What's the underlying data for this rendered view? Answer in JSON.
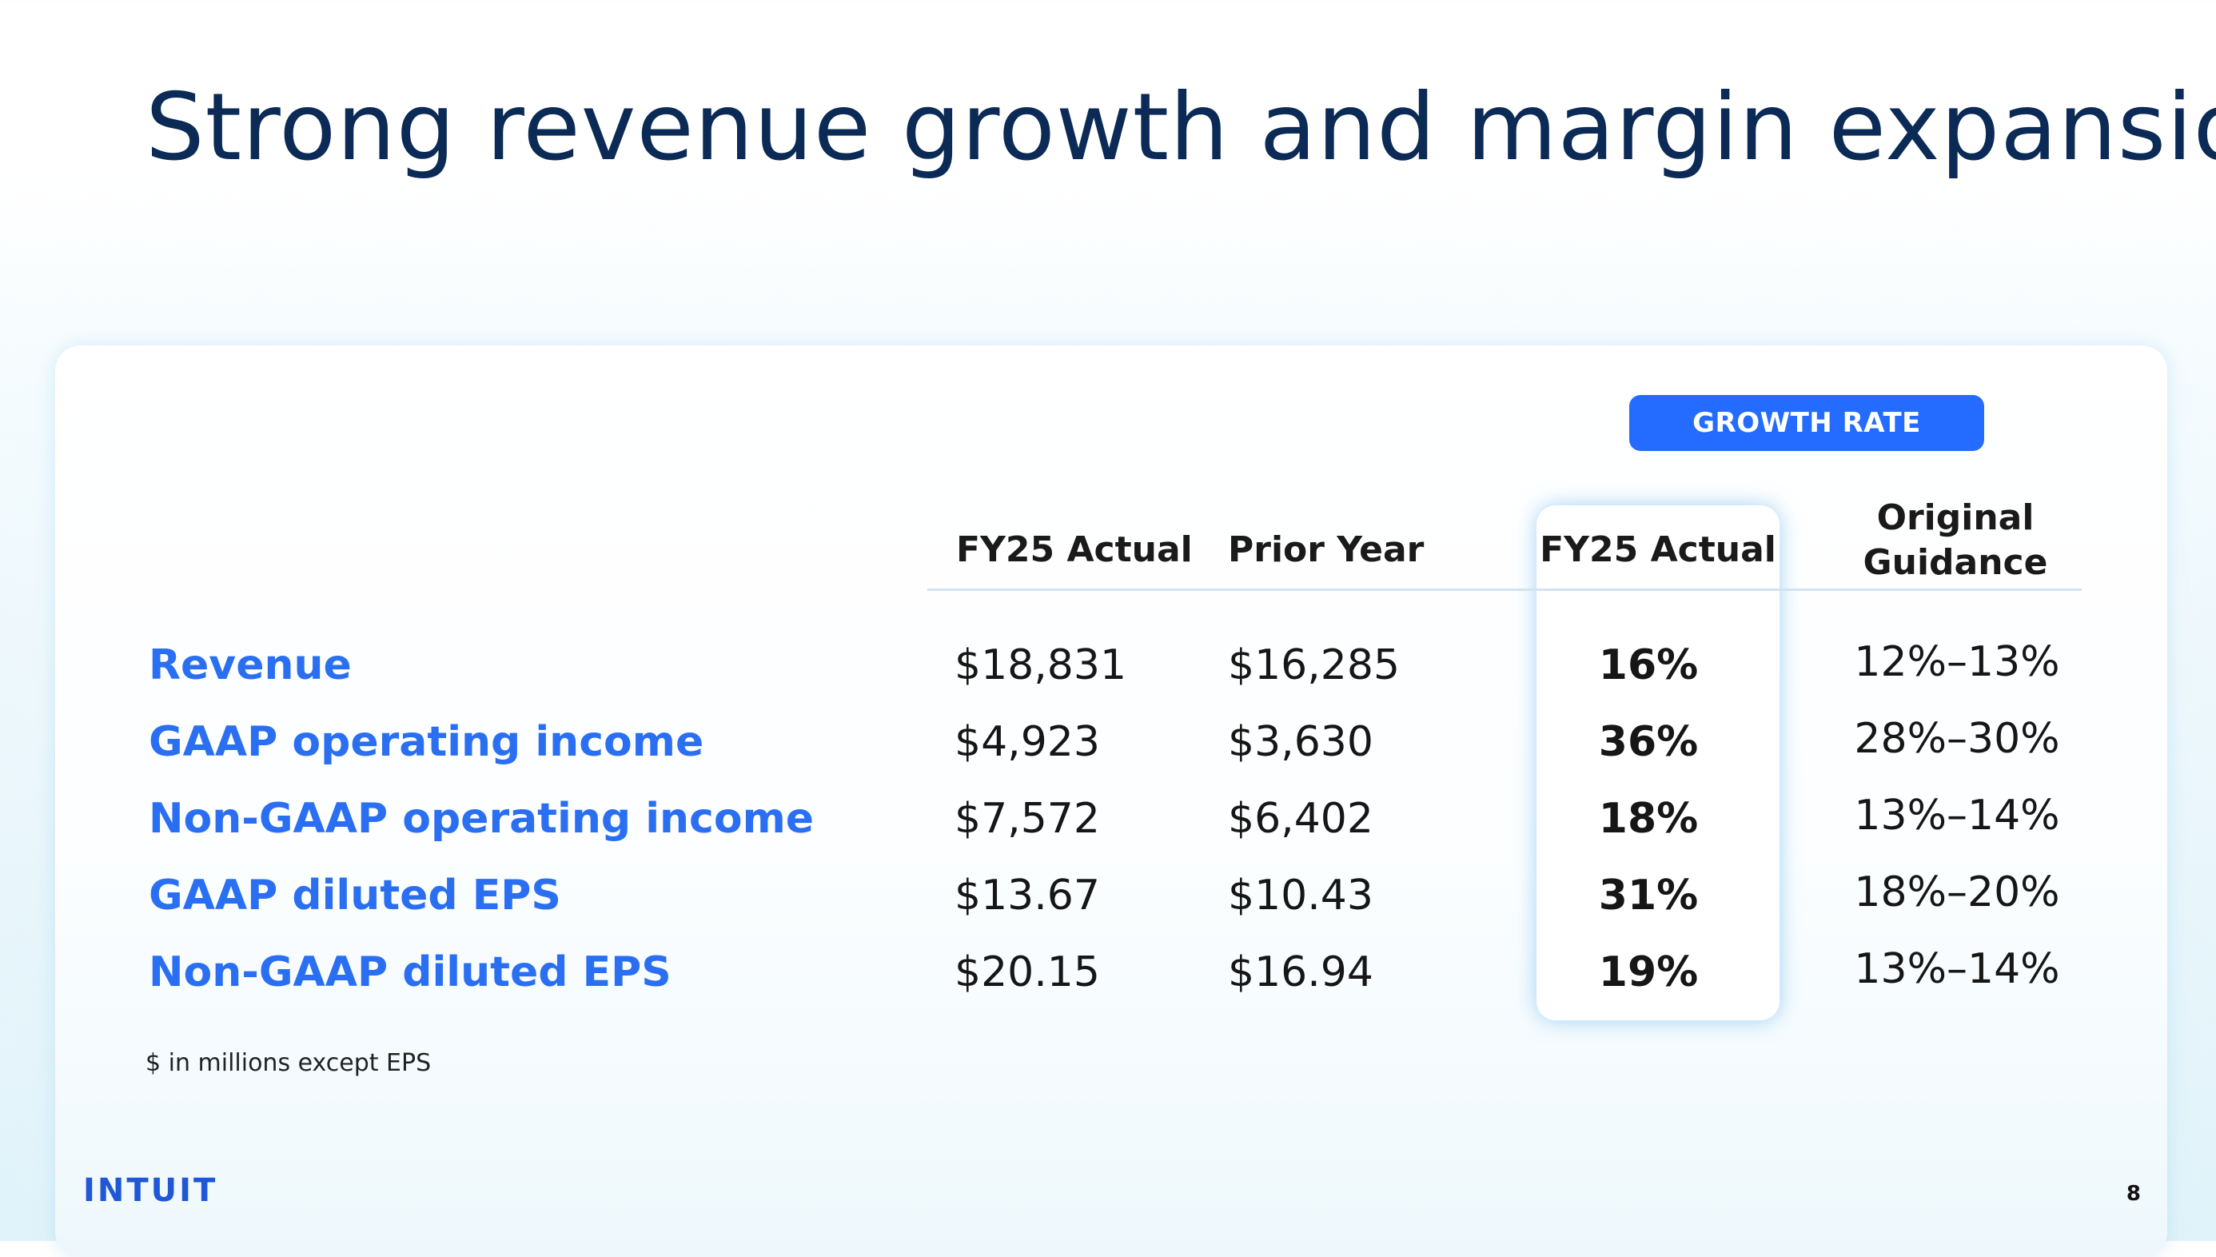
{
  "slide": {
    "title": "Strong revenue growth and margin expansion",
    "page_number": "8",
    "logo_text": "INTUIT",
    "footnote": "$ in millions except EPS"
  },
  "table": {
    "group_header": "GROWTH RATE",
    "headers": {
      "fy25_actual": "FY25 Actual",
      "prior_year": "Prior Year",
      "growth_fy25_actual": "FY25 Actual",
      "original_guidance_line1": "Original",
      "original_guidance_line2": "Guidance"
    },
    "rows": [
      {
        "label": "Revenue",
        "fy25_actual": "$18,831",
        "prior_year": "$16,285",
        "growth": "16%",
        "guidance": "12%–13%"
      },
      {
        "label": "GAAP operating income",
        "fy25_actual": "$4,923",
        "prior_year": "$3,630",
        "growth": "36%",
        "guidance": "28%–30%"
      },
      {
        "label": "Non-GAAP operating income",
        "fy25_actual": "$7,572",
        "prior_year": "$6,402",
        "growth": "18%",
        "guidance": "13%–14%"
      },
      {
        "label": "GAAP diluted EPS",
        "fy25_actual": "$13.67",
        "prior_year": "$10.43",
        "growth": "31%",
        "guidance": "18%–20%"
      },
      {
        "label": "Non-GAAP diluted EPS",
        "fy25_actual": "$20.15",
        "prior_year": "$16.94",
        "growth": "19%",
        "guidance": "13%–14%"
      }
    ]
  },
  "colors": {
    "title": "#0b2a55",
    "accent_blue": "#236cff",
    "row_label_blue": "#2a6ff2"
  }
}
